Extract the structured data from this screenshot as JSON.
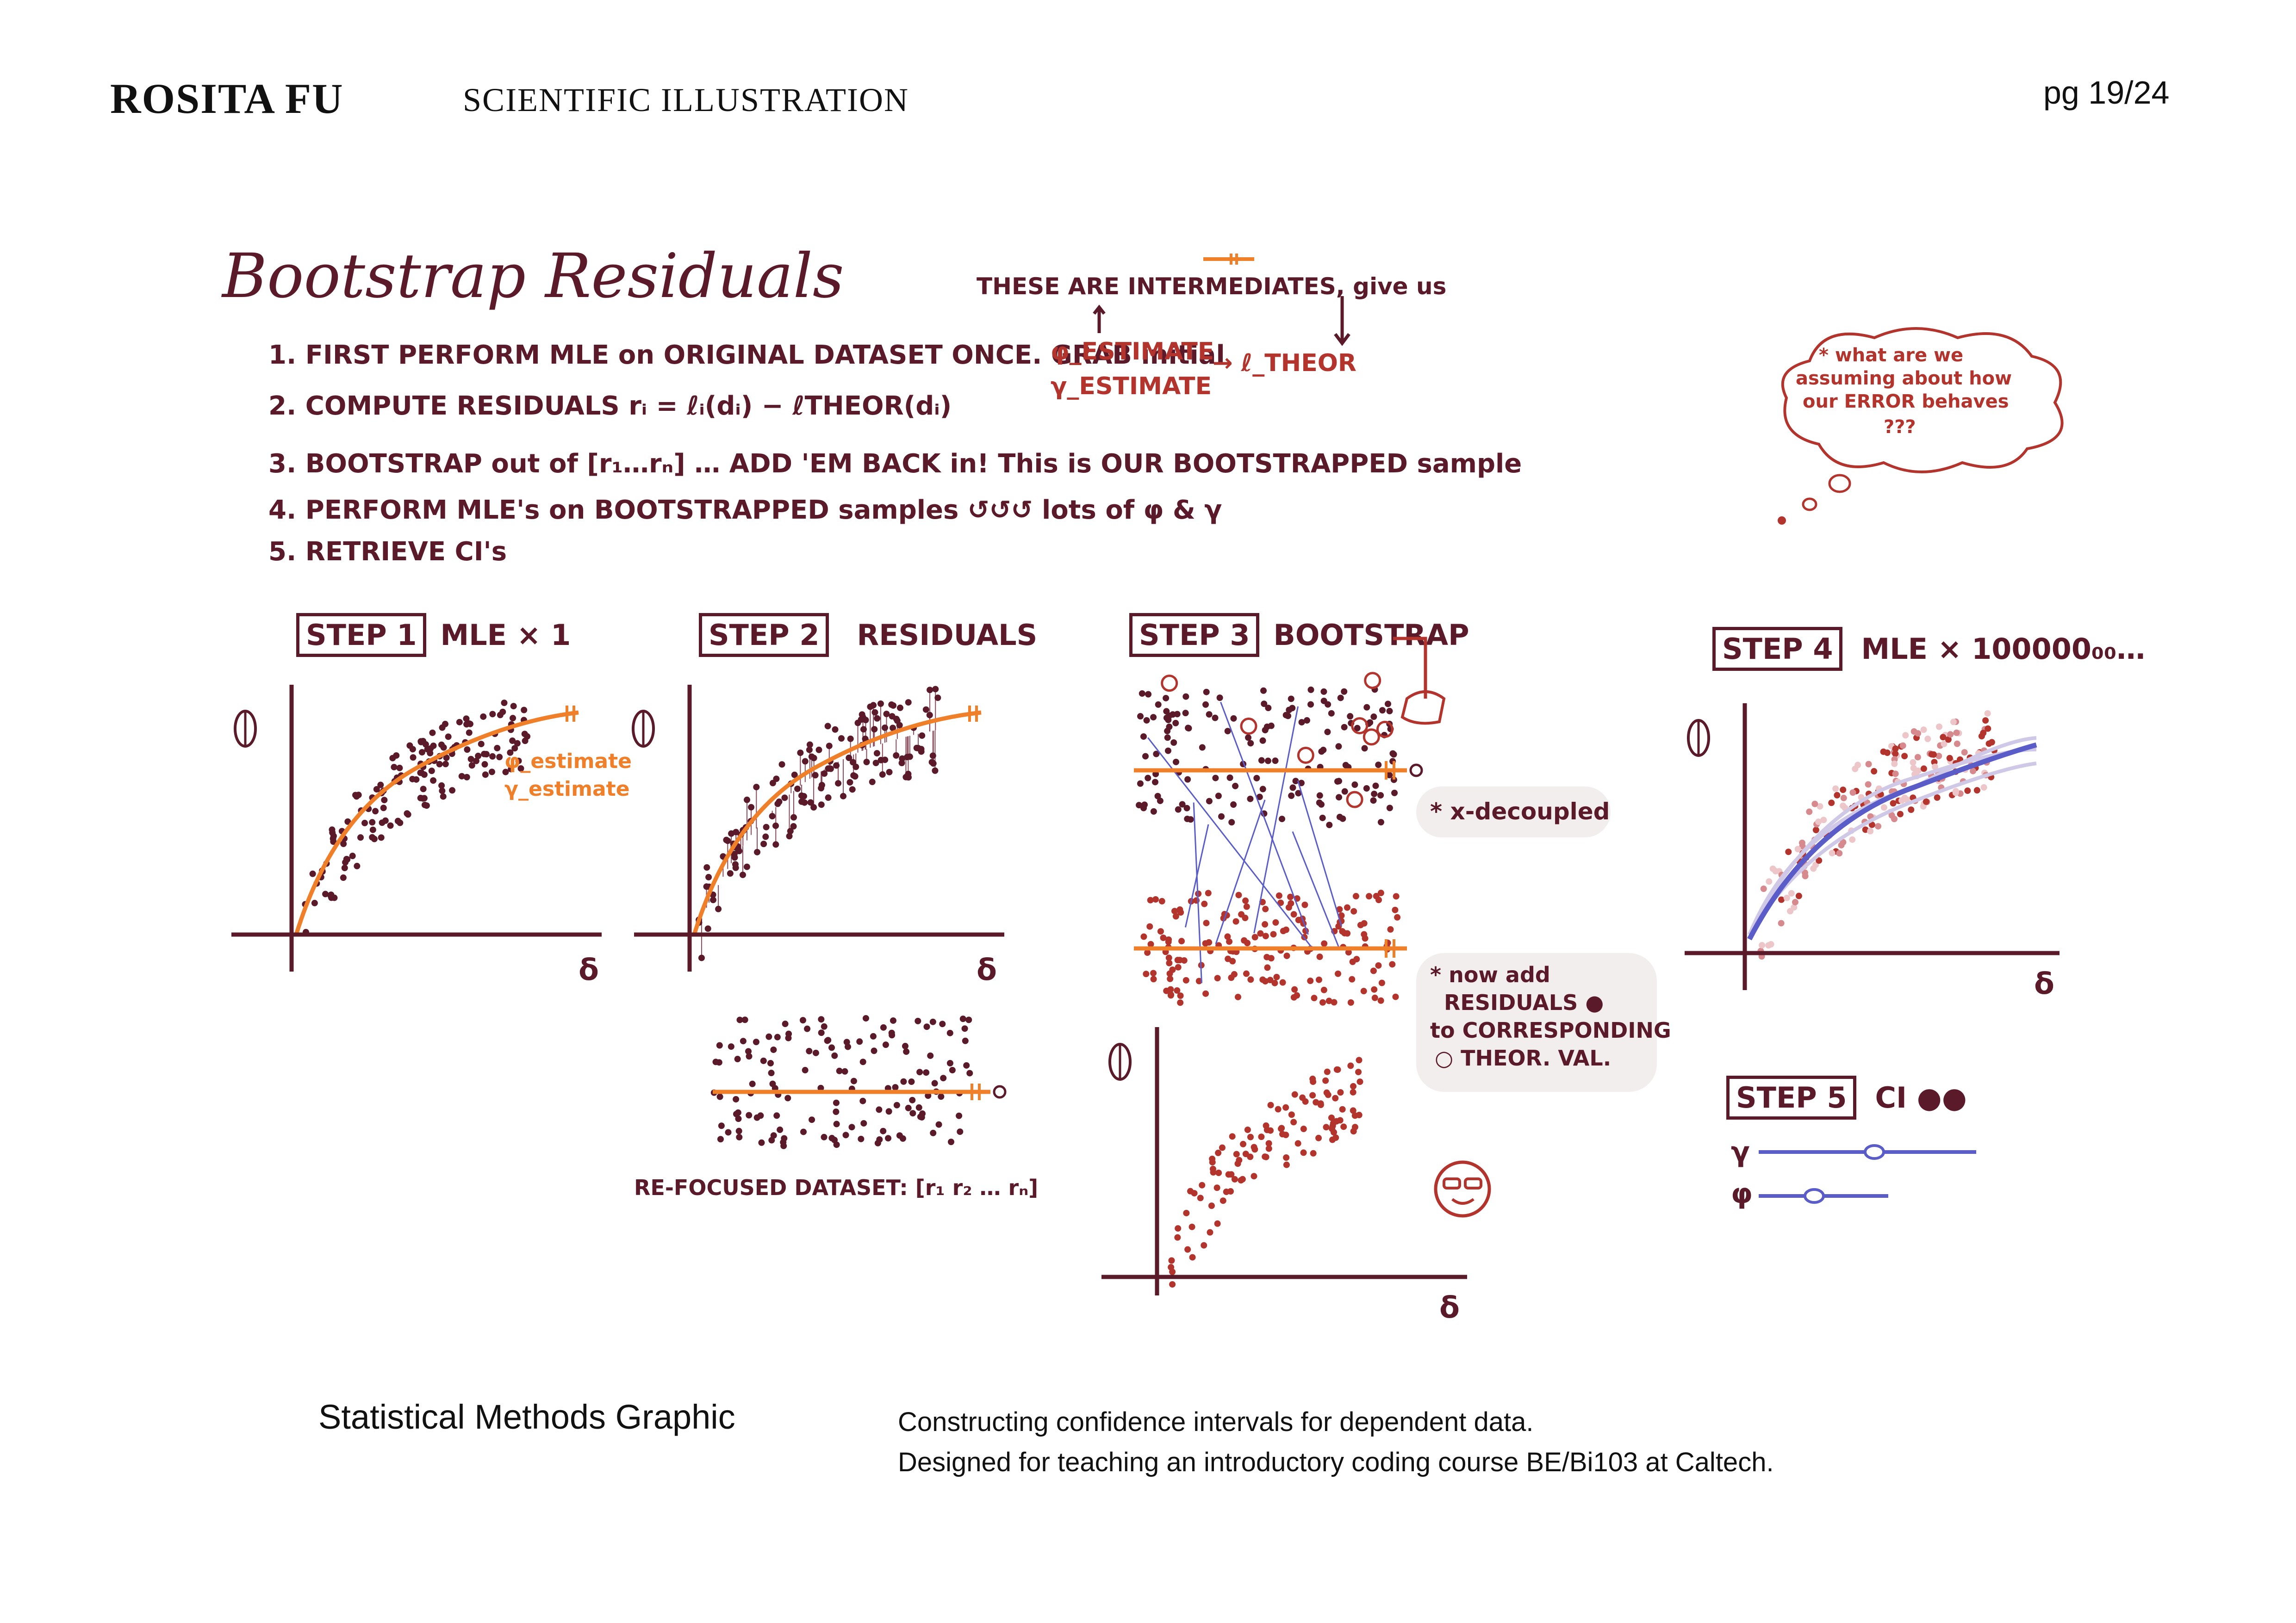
{
  "header": {
    "author": "ROSITA FU",
    "section": "SCIENTIFIC ILLUSTRATION",
    "page": "pg 19/24"
  },
  "illustration": {
    "title": "Bootstrap Residuals",
    "steps_list": [
      "1.  FIRST PERFORM MLE on ORIGINAL DATASET ONCE. GRAB initial",
      "2.  COMPUTE RESIDUALS  rᵢ = ℓᵢ(dᵢ) − ℓTHEOR(dᵢ)",
      "3.  BOOTSTRAP out of [r₁…rₙ] … ADD 'EM BACK in! This is OUR BOOTSTRAPPED sample",
      "4.  PERFORM MLE's on BOOTSTRAPPED samples ↺↺↺ lots of φ & γ",
      "5.  RETRIEVE CI's"
    ],
    "intermediates_note": "THESE ARE INTERMEDIATES, give us",
    "phi_estimate": "φ_ESTIMATE",
    "gamma_estimate": "γ_ESTIMATE",
    "l_theor": "→ ℓ_THEOR",
    "thought_bubble": [
      "* what are we",
      "assuming about how",
      "our ERROR behaves",
      "???"
    ],
    "step1": {
      "box": "STEP 1",
      "label": "MLE × 1",
      "legend_phi": "φ_estimate",
      "legend_gamma": "γ_estimate"
    },
    "step2": {
      "box": "STEP 2",
      "label": "RESIDUALS",
      "refocused": "RE-FOCUSED DATASET: [r₁ r₂ …   rₙ]"
    },
    "step3": {
      "box": "STEP 3",
      "label": "BOOTSTRAP",
      "note_decoupled": "* x-decoupled",
      "note_add": [
        "* now add",
        "RESIDUALS ●",
        "to CORRESPONDING",
        "○ THEOR. VAL."
      ]
    },
    "step4": {
      "box": "STEP 4",
      "label": "MLE × 100000₀₀…"
    },
    "step5": {
      "box": "STEP 5",
      "label": "CI ●●",
      "gamma": "γ",
      "phi": "φ"
    },
    "x_axis_symbol": "δ"
  },
  "caption": {
    "title": "Statistical Methods Graphic",
    "line1": "Constructing confidence intervals for dependent data.",
    "line2": "Designed for teaching an introductory coding course BE/Bi103 at Caltech."
  },
  "colors": {
    "dark": "#5a1a2a",
    "red": "#b2342c",
    "orange": "#f07f2a",
    "blue": "#5a5cc8"
  }
}
